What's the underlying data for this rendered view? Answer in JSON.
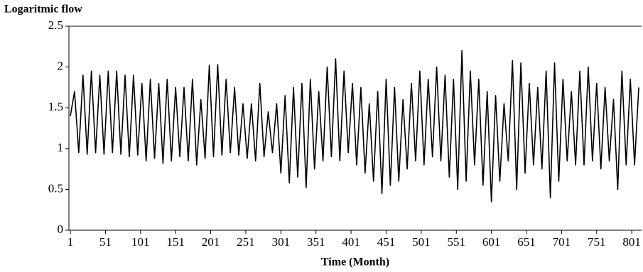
{
  "chart_data": {
    "type": "line",
    "title": "Logaritmic flow",
    "x_label": "Time (Month)",
    "x": [
      1,
      7,
      13,
      19,
      25,
      31,
      37,
      43,
      49,
      55,
      61,
      67,
      73,
      79,
      85,
      91,
      97,
      103,
      109,
      115,
      121,
      127,
      133,
      139,
      145,
      151,
      157,
      163,
      169,
      175,
      181,
      187,
      193,
      199,
      205,
      211,
      217,
      223,
      229,
      235,
      241,
      247,
      253,
      259,
      265,
      271,
      277,
      283,
      289,
      295,
      301,
      307,
      313,
      319,
      325,
      331,
      337,
      343,
      349,
      355,
      361,
      367,
      373,
      379,
      385,
      391,
      397,
      403,
      409,
      415,
      421,
      427,
      433,
      439,
      445,
      451,
      457,
      463,
      469,
      475,
      481,
      487,
      493,
      499,
      505,
      511,
      517,
      523,
      529,
      535,
      541,
      547,
      553,
      559,
      565,
      571,
      577,
      583,
      589,
      595,
      601,
      607,
      613,
      619,
      625,
      631,
      637,
      643,
      649,
      655,
      661,
      667,
      673,
      679,
      685,
      691,
      697,
      703,
      709,
      715,
      721,
      727,
      733,
      739,
      745,
      751,
      757,
      763,
      769,
      775,
      781,
      787,
      793,
      799,
      805,
      811
    ],
    "series": [
      {
        "name": "Logaritmic flow",
        "color": "#000000",
        "values": [
          1.4,
          1.7,
          0.95,
          1.9,
          0.93,
          1.95,
          0.95,
          1.9,
          0.93,
          1.95,
          0.95,
          1.95,
          0.93,
          1.9,
          0.9,
          1.9,
          0.92,
          1.8,
          0.85,
          1.85,
          0.88,
          1.8,
          0.82,
          1.85,
          0.85,
          1.75,
          0.9,
          1.75,
          0.85,
          1.85,
          0.8,
          1.6,
          0.88,
          2.02,
          0.9,
          2.03,
          0.92,
          1.85,
          0.95,
          1.75,
          0.92,
          1.55,
          0.88,
          1.55,
          0.85,
          1.8,
          0.9,
          1.45,
          0.95,
          1.55,
          0.7,
          1.65,
          0.58,
          1.75,
          0.65,
          1.8,
          0.52,
          1.85,
          0.75,
          1.7,
          0.85,
          2.0,
          0.9,
          2.1,
          0.85,
          1.95,
          0.95,
          1.8,
          0.8,
          1.75,
          0.7,
          1.55,
          0.6,
          1.7,
          0.45,
          1.85,
          0.55,
          1.75,
          0.6,
          1.6,
          0.75,
          1.8,
          0.85,
          1.95,
          0.8,
          1.85,
          0.9,
          2.0,
          0.85,
          1.9,
          0.65,
          1.85,
          0.5,
          2.2,
          0.6,
          1.95,
          0.8,
          1.85,
          0.55,
          1.7,
          0.35,
          1.65,
          0.6,
          1.55,
          0.85,
          2.08,
          0.5,
          2.05,
          0.7,
          1.8,
          0.8,
          1.75,
          0.75,
          1.95,
          0.4,
          2.05,
          0.6,
          1.85,
          0.85,
          1.7,
          0.8,
          1.95,
          0.8,
          2.0,
          0.85,
          1.8,
          0.75,
          1.75,
          0.85,
          1.6,
          0.5,
          1.95,
          0.8,
          1.85,
          0.8,
          1.75
        ]
      }
    ],
    "xlim": [
      1,
      815
    ],
    "ylim": [
      0,
      2.5
    ],
    "xticks": [
      1,
      51,
      101,
      151,
      201,
      251,
      301,
      351,
      401,
      451,
      501,
      551,
      601,
      651,
      701,
      751,
      801
    ],
    "yticks": [
      0,
      0.5,
      1,
      1.5,
      2,
      2.5
    ]
  }
}
